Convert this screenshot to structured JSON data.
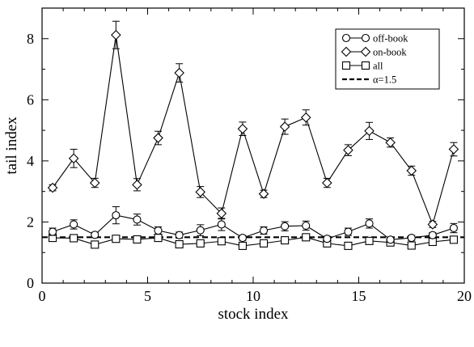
{
  "chart_data": {
    "type": "line",
    "xlabel": "stock index",
    "ylabel": "tail index",
    "xlim": [
      0,
      20
    ],
    "ylim": [
      0,
      9
    ],
    "x_ticks": [
      "0",
      "5",
      "10",
      "15",
      "20"
    ],
    "y_ticks": [
      "0",
      "2",
      "4",
      "6",
      "8"
    ],
    "grid": false,
    "legend_position": "top-right",
    "x": [
      0.5,
      1.5,
      2.5,
      3.5,
      4.5,
      5.5,
      6.5,
      7.5,
      8.5,
      9.5,
      10.5,
      11.5,
      12.5,
      13.5,
      14.5,
      15.5,
      16.5,
      17.5,
      18.5,
      19.5
    ],
    "series": [
      {
        "name": "off-book",
        "marker": "circle",
        "values": [
          1.68,
          1.92,
          1.58,
          2.22,
          2.08,
          1.72,
          1.57,
          1.73,
          1.92,
          1.48,
          1.72,
          1.86,
          1.88,
          1.45,
          1.68,
          1.95,
          1.42,
          1.48,
          1.57,
          1.8
        ],
        "errors": [
          0.12,
          0.15,
          0.08,
          0.28,
          0.18,
          0.12,
          0.1,
          0.18,
          0.2,
          0.08,
          0.12,
          0.15,
          0.15,
          0.08,
          0.12,
          0.15,
          0.08,
          0.08,
          0.08,
          0.15
        ]
      },
      {
        "name": "on-book",
        "marker": "diamond",
        "values": [
          3.12,
          4.08,
          3.28,
          8.12,
          3.22,
          4.75,
          6.88,
          2.98,
          2.28,
          5.05,
          2.92,
          5.12,
          5.42,
          3.28,
          4.35,
          4.98,
          4.6,
          3.68,
          1.92,
          4.38
        ],
        "errors": [
          0.1,
          0.3,
          0.15,
          0.45,
          0.2,
          0.22,
          0.3,
          0.18,
          0.18,
          0.22,
          0.12,
          0.25,
          0.25,
          0.15,
          0.18,
          0.28,
          0.15,
          0.15,
          0.1,
          0.22
        ]
      },
      {
        "name": "all",
        "marker": "square",
        "values": [
          1.48,
          1.47,
          1.26,
          1.45,
          1.43,
          1.48,
          1.27,
          1.3,
          1.37,
          1.22,
          1.3,
          1.4,
          1.5,
          1.3,
          1.22,
          1.38,
          1.33,
          1.23,
          1.35,
          1.42
        ],
        "errors": [
          0.06,
          0.06,
          0.06,
          0.06,
          0.06,
          0.06,
          0.06,
          0.06,
          0.06,
          0.06,
          0.06,
          0.06,
          0.06,
          0.06,
          0.06,
          0.06,
          0.06,
          0.06,
          0.06,
          0.06
        ]
      },
      {
        "name": "α=1.5",
        "style": "dashed",
        "values": [
          1.5,
          1.5,
          1.5,
          1.5,
          1.5,
          1.5,
          1.5,
          1.5,
          1.5,
          1.5,
          1.5,
          1.5,
          1.5,
          1.5,
          1.5,
          1.5,
          1.5,
          1.5,
          1.5,
          1.5
        ]
      }
    ]
  },
  "colors": {
    "line": "#000000",
    "marker_fill": "#ffffff",
    "background": "#ffffff"
  }
}
